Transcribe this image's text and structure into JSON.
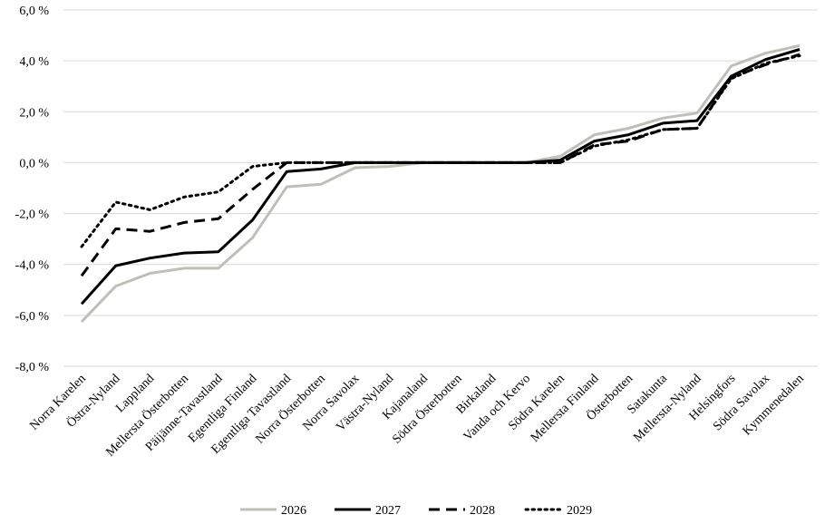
{
  "chart_data": {
    "type": "line",
    "title": "",
    "xlabel": "",
    "ylabel": "",
    "ylim": [
      -8,
      6
    ],
    "yticks": [
      6,
      4,
      2,
      0,
      -2,
      -4,
      -6,
      -8
    ],
    "ytick_labels": [
      "6,0 %",
      "4,0 %",
      "2,0 %",
      "0,0 %",
      "-2,0 %",
      "-4,0 %",
      "-6,0 %",
      "-8,0 %"
    ],
    "grid": true,
    "legend_position": "bottom",
    "categories": [
      "Norra Karelen",
      "Östra-Nyland",
      "Lappland",
      "Mellersta Österbotten",
      "Päijänne-Tavastland",
      "Egentliga Finland",
      "Egentliga Tavastland",
      "Norra Österbotten",
      "Norra Savolax",
      "Västra-Nyland",
      "Kajanaland",
      "Södra Österbotten",
      "Birkaland",
      "Vanda och Kervo",
      "Södra Karelen",
      "Mellersta Finland",
      "Österbotten",
      "Satakunta",
      "Mellersta-Nyland",
      "Helsingfors",
      "Södra Savolax",
      "Kymmenedalen"
    ],
    "series": [
      {
        "name": "2026",
        "color": "#bfbfb8",
        "dash": "solid",
        "values": [
          -6.25,
          -4.85,
          -4.35,
          -4.15,
          -4.15,
          -2.95,
          -0.95,
          -0.85,
          -0.2,
          -0.15,
          0.0,
          0.0,
          0.0,
          0.0,
          0.25,
          1.1,
          1.35,
          1.75,
          1.95,
          3.8,
          4.3,
          4.6
        ]
      },
      {
        "name": "2027",
        "color": "#000000",
        "dash": "solid",
        "values": [
          -5.55,
          -4.05,
          -3.75,
          -3.55,
          -3.5,
          -2.25,
          -0.35,
          -0.25,
          0.0,
          0.0,
          0.0,
          0.0,
          0.0,
          0.0,
          0.1,
          0.85,
          1.1,
          1.55,
          1.65,
          3.4,
          4.05,
          4.45
        ]
      },
      {
        "name": "2028",
        "color": "#000000",
        "dash": "dashed",
        "values": [
          -4.45,
          -2.6,
          -2.7,
          -2.35,
          -2.2,
          -1.05,
          0.0,
          0.0,
          0.0,
          0.0,
          0.0,
          0.0,
          0.0,
          0.0,
          0.0,
          0.7,
          0.85,
          1.3,
          1.35,
          3.35,
          3.85,
          4.25
        ]
      },
      {
        "name": "2029",
        "color": "#000000",
        "dash": "dotted",
        "values": [
          -3.3,
          -1.55,
          -1.85,
          -1.35,
          -1.15,
          -0.15,
          0.0,
          0.0,
          0.0,
          0.0,
          0.0,
          0.0,
          0.0,
          0.0,
          0.0,
          0.65,
          0.9,
          1.3,
          1.35,
          3.3,
          3.9,
          4.2
        ]
      }
    ]
  }
}
